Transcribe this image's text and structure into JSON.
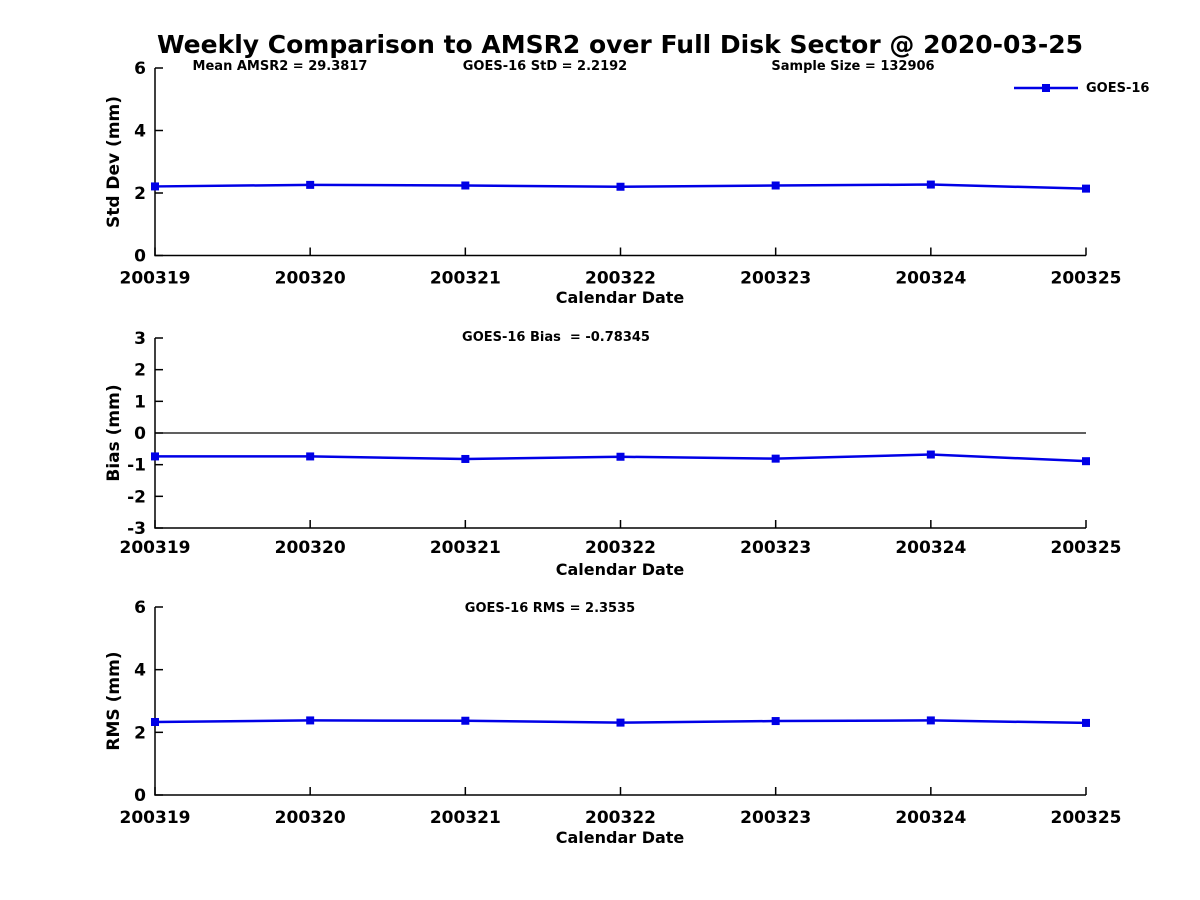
{
  "title": "Weekly Comparison to AMSR2 over Full Disk Sector @ 2020-03-25",
  "x_axis_label": "Calendar Date",
  "categories": [
    "200319",
    "200320",
    "200321",
    "200322",
    "200323",
    "200324",
    "200325"
  ],
  "legend": {
    "label": "GOES-16",
    "color": "#0000E6"
  },
  "chart_data": [
    {
      "type": "line",
      "title": "",
      "xlabel": "Calendar Date",
      "ylabel": "Std Dev (mm)",
      "ylim": [
        0,
        6
      ],
      "yticks": [
        0,
        2,
        4,
        6
      ],
      "x": [
        "200319",
        "200320",
        "200321",
        "200322",
        "200323",
        "200324",
        "200325"
      ],
      "annotations": [
        {
          "text": "Mean AMSR2 = 29.3817"
        },
        {
          "text": "GOES-16 StD = 2.2192"
        },
        {
          "text": "Sample Size = 132906"
        }
      ],
      "legend_position": "top-right-outside",
      "grid": false,
      "series": [
        {
          "name": "GOES-16",
          "color": "#0000E6",
          "marker": "square",
          "values": [
            2.21,
            2.26,
            2.24,
            2.2,
            2.24,
            2.27,
            2.14
          ]
        }
      ]
    },
    {
      "type": "line",
      "title": "",
      "xlabel": "Calendar Date",
      "ylabel": "Bias (mm)",
      "ylim": [
        -3,
        3
      ],
      "yticks": [
        -3,
        -2,
        -1,
        0,
        1,
        2,
        3
      ],
      "zero_line": true,
      "x": [
        "200319",
        "200320",
        "200321",
        "200322",
        "200323",
        "200324",
        "200325"
      ],
      "annotations": [
        {
          "text": "GOES-16 Bias  = -0.78345"
        }
      ],
      "grid": false,
      "series": [
        {
          "name": "GOES-16",
          "color": "#0000E6",
          "marker": "square",
          "values": [
            -0.74,
            -0.74,
            -0.82,
            -0.75,
            -0.81,
            -0.68,
            -0.89
          ]
        }
      ]
    },
    {
      "type": "line",
      "title": "",
      "xlabel": "Calendar Date",
      "ylabel": "RMS (mm)",
      "ylim": [
        0,
        6
      ],
      "yticks": [
        0,
        2,
        4,
        6
      ],
      "x": [
        "200319",
        "200320",
        "200321",
        "200322",
        "200323",
        "200324",
        "200325"
      ],
      "annotations": [
        {
          "text": "GOES-16 RMS = 2.3535"
        }
      ],
      "grid": false,
      "series": [
        {
          "name": "GOES-16",
          "color": "#0000E6",
          "marker": "square",
          "values": [
            2.33,
            2.38,
            2.37,
            2.31,
            2.36,
            2.38,
            2.3
          ]
        }
      ]
    }
  ]
}
